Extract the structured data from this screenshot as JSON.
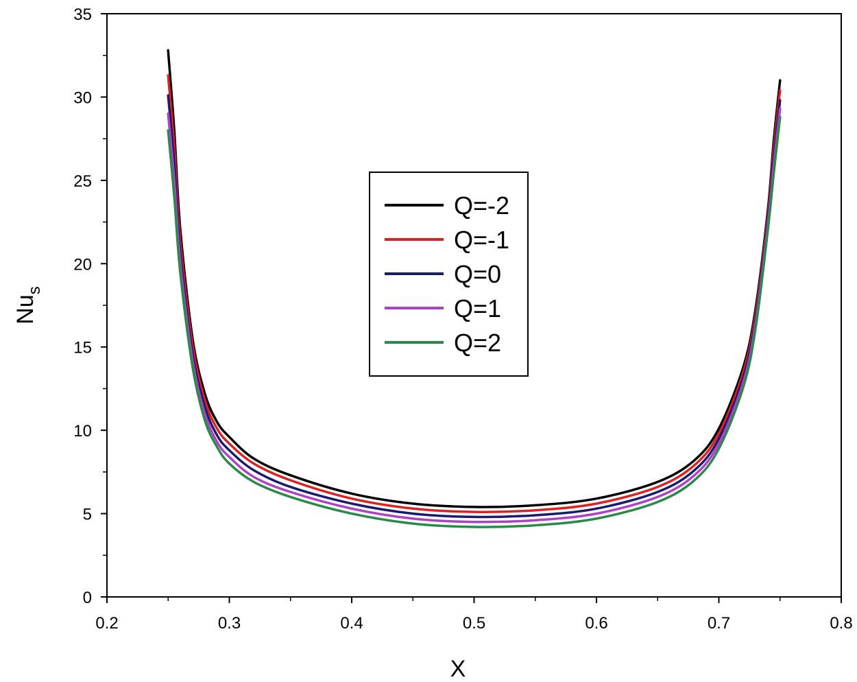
{
  "chart_data": {
    "type": "line",
    "title": "",
    "xlabel": "X",
    "ylabel_main": "Nu",
    "ylabel_sub": "s",
    "xlim": [
      0.2,
      0.8
    ],
    "ylim": [
      0,
      35
    ],
    "xticks": [
      0.2,
      0.3,
      0.4,
      0.5,
      0.6,
      0.7,
      0.8
    ],
    "xtick_labels": [
      "0.2",
      "0.3",
      "0.4",
      "0.5",
      "0.6",
      "0.7",
      "0.8"
    ],
    "yticks": [
      0,
      5,
      10,
      15,
      20,
      25,
      30,
      35
    ],
    "ytick_labels": [
      "0",
      "5",
      "10",
      "15",
      "20",
      "25",
      "30",
      "35"
    ],
    "grid": false,
    "legend_position": "center",
    "x": [
      0.25,
      0.255,
      0.26,
      0.27,
      0.28,
      0.29,
      0.3,
      0.32,
      0.35,
      0.4,
      0.45,
      0.5,
      0.55,
      0.6,
      0.65,
      0.68,
      0.7,
      0.72,
      0.73,
      0.74,
      0.745,
      0.75
    ],
    "series": [
      {
        "name": "Q=-2",
        "color": "#000000",
        "values": [
          32.8,
          28.0,
          22.0,
          15.5,
          12.2,
          10.5,
          9.6,
          8.3,
          7.3,
          6.2,
          5.6,
          5.4,
          5.5,
          5.9,
          6.9,
          8.2,
          10.1,
          13.8,
          17.3,
          23.2,
          27.5,
          31.0
        ]
      },
      {
        "name": "Q=-1",
        "color": "#e02020",
        "values": [
          31.3,
          27.0,
          21.3,
          15.1,
          11.8,
          10.1,
          9.2,
          8.0,
          7.0,
          5.9,
          5.3,
          5.1,
          5.2,
          5.6,
          6.6,
          7.9,
          9.8,
          13.5,
          17.0,
          22.9,
          27.0,
          30.4
        ]
      },
      {
        "name": "Q=0",
        "color": "#1a1a6e",
        "values": [
          30.1,
          26.0,
          20.6,
          14.6,
          11.4,
          9.7,
          8.8,
          7.6,
          6.6,
          5.6,
          5.0,
          4.8,
          4.9,
          5.3,
          6.3,
          7.6,
          9.5,
          13.2,
          16.7,
          22.6,
          26.5,
          29.8
        ]
      },
      {
        "name": "Q=1",
        "color": "#b040c8",
        "values": [
          29.0,
          25.0,
          20.0,
          14.2,
          11.0,
          9.3,
          8.4,
          7.2,
          6.3,
          5.3,
          4.7,
          4.5,
          4.6,
          5.0,
          6.0,
          7.3,
          9.2,
          12.9,
          16.4,
          22.3,
          26.0,
          29.3
        ]
      },
      {
        "name": "Q=2",
        "color": "#2a8a4a",
        "values": [
          28.0,
          24.0,
          19.4,
          13.8,
          10.6,
          9.0,
          8.0,
          6.9,
          6.0,
          5.0,
          4.4,
          4.2,
          4.3,
          4.7,
          5.7,
          7.0,
          8.9,
          12.6,
          16.1,
          22.0,
          25.5,
          28.8
        ]
      }
    ]
  }
}
